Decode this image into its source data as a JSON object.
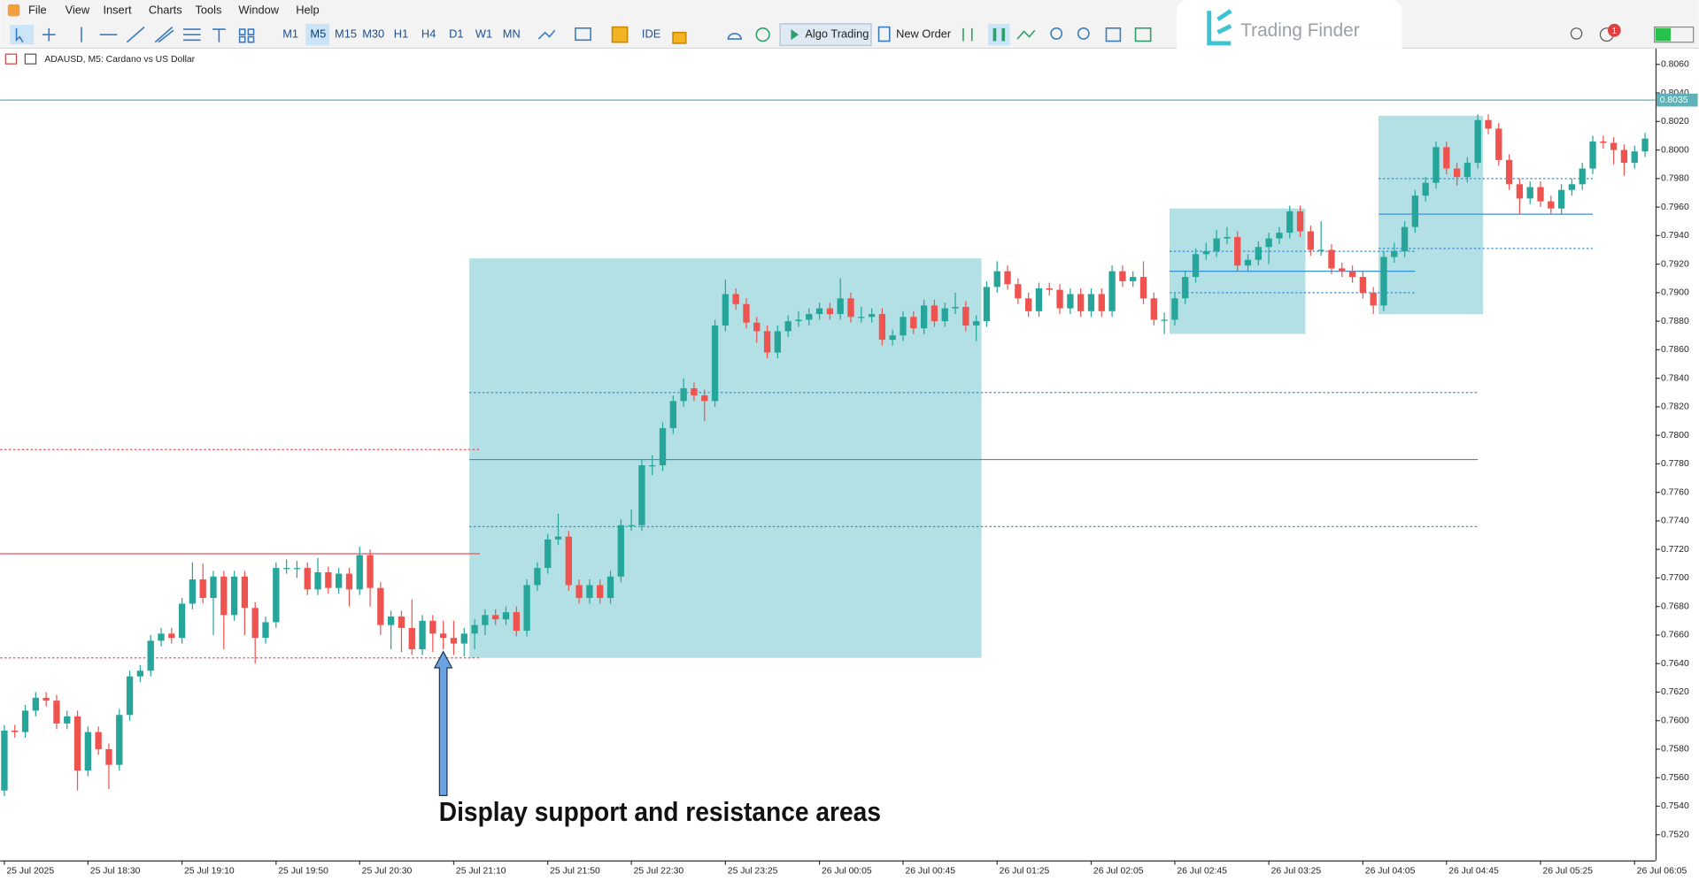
{
  "ui": {
    "menu": [
      "File",
      "View",
      "Insert",
      "Charts",
      "Tools",
      "Window",
      "Help"
    ],
    "timeframes": [
      "M1",
      "M5",
      "M15",
      "M30",
      "H1",
      "H4",
      "D1",
      "W1",
      "MN"
    ],
    "selected_timeframe": 1,
    "buttons": [
      "IDE",
      "Algo Trading",
      "New Order"
    ],
    "logo": "Trading Finder",
    "notification_count": "1"
  },
  "chart_data": {
    "type": "candlestick",
    "symbol_title": "ADAUSD, M5:  Cardano vs US Dollar",
    "annotation": "Display support and resistance areas",
    "bull_color": "#26a69a",
    "bear_color": "#ef5350",
    "zone_color": "#b2e0e4",
    "xlim": [
      -0.4,
      158
    ],
    "ylim": [
      0.7502,
      0.8071
    ],
    "xticks": [
      {
        "value": 0,
        "label": "25 Jul 2025"
      },
      {
        "value": 8,
        "label": "25 Jul 18:30"
      },
      {
        "value": 17,
        "label": "25 Jul 19:10"
      },
      {
        "value": 26,
        "label": "25 Jul 19:50"
      },
      {
        "value": 34,
        "label": "25 Jul 20:30"
      },
      {
        "value": 43,
        "label": "25 Jul 21:10"
      },
      {
        "value": 52,
        "label": "25 Jul 21:50"
      },
      {
        "value": 60,
        "label": "25 Jul 22:30"
      },
      {
        "value": 69,
        "label": "25 Jul 23:25"
      },
      {
        "value": 78,
        "label": "26 Jul 00:05"
      },
      {
        "value": 86,
        "label": "26 Jul 00:45"
      },
      {
        "value": 95,
        "label": "26 Jul 01:25"
      },
      {
        "value": 104,
        "label": "26 Jul 02:05"
      },
      {
        "value": 112,
        "label": "26 Jul 02:45"
      },
      {
        "value": 121,
        "label": "26 Jul 03:25"
      },
      {
        "value": 130,
        "label": "26 Jul 04:05"
      },
      {
        "value": 138,
        "label": "26 Jul 04:45"
      },
      {
        "value": 147,
        "label": "26 Jul 05:25"
      },
      {
        "value": 156,
        "label": "26 Jul 06:05"
      }
    ],
    "yticks": [
      {
        "value": 0.752,
        "label": "0.7520"
      },
      {
        "value": 0.754,
        "label": "0.7540"
      },
      {
        "value": 0.756,
        "label": "0.7560"
      },
      {
        "value": 0.758,
        "label": "0.7580"
      },
      {
        "value": 0.76,
        "label": "0.7600"
      },
      {
        "value": 0.762,
        "label": "0.7620"
      },
      {
        "value": 0.764,
        "label": "0.7640"
      },
      {
        "value": 0.766,
        "label": "0.7660"
      },
      {
        "value": 0.768,
        "label": "0.7680"
      },
      {
        "value": 0.77,
        "label": "0.7700"
      },
      {
        "value": 0.772,
        "label": "0.7720"
      },
      {
        "value": 0.774,
        "label": "0.7740"
      },
      {
        "value": 0.776,
        "label": "0.7760"
      },
      {
        "value": 0.778,
        "label": "0.7780"
      },
      {
        "value": 0.78,
        "label": "0.7800"
      },
      {
        "value": 0.782,
        "label": "0.7820"
      },
      {
        "value": 0.784,
        "label": "0.7840"
      },
      {
        "value": 0.786,
        "label": "0.7860"
      },
      {
        "value": 0.788,
        "label": "0.7880"
      },
      {
        "value": 0.79,
        "label": "0.7900"
      },
      {
        "value": 0.792,
        "label": "0.7920"
      },
      {
        "value": 0.794,
        "label": "0.7940"
      },
      {
        "value": 0.796,
        "label": "0.7960"
      },
      {
        "value": 0.798,
        "label": "0.7980"
      },
      {
        "value": 0.8,
        "label": "0.8000"
      },
      {
        "value": 0.802,
        "label": "0.8020"
      },
      {
        "value": 0.804,
        "label": "0.8040"
      },
      {
        "value": 0.806,
        "label": "0.8060"
      }
    ],
    "current_price": 0.8035,
    "current_price_color": "#5fb0b7",
    "zones": [
      {
        "x": [
          44.5,
          93.5
        ],
        "y": [
          0.7644,
          0.7924
        ]
      },
      {
        "x": [
          111.5,
          124.5
        ],
        "y": [
          0.7871,
          0.7959
        ]
      },
      {
        "x": [
          131.5,
          141.5
        ],
        "y": [
          0.7885,
          0.8024
        ]
      }
    ],
    "levels": [
      {
        "value": 0.779,
        "x": [
          -0.4,
          45.5
        ],
        "style": "dotted",
        "color": "#e8535a"
      },
      {
        "value": 0.7717,
        "x": [
          -0.4,
          45.5
        ],
        "style": "solid",
        "color": "#e8535a"
      },
      {
        "value": 0.7644,
        "x": [
          -0.4,
          45.5
        ],
        "style": "dotted",
        "color": "#e8535a"
      },
      {
        "value": 0.783,
        "x": [
          44.5,
          141
        ],
        "style": "dotted",
        "color": "#3a8fd6"
      },
      {
        "value": 0.7783,
        "x": [
          44.5,
          141
        ],
        "style": "solid",
        "color": "#3a8fd6"
      },
      {
        "value": 0.7736,
        "x": [
          44.5,
          141
        ],
        "style": "dotted",
        "color": "#3a8fd6"
      },
      {
        "value": 0.7929,
        "x": [
          111.5,
          135
        ],
        "style": "dotted",
        "color": "#3a8fd6"
      },
      {
        "value": 0.7915,
        "x": [
          111.5,
          135
        ],
        "style": "solid",
        "color": "#3a8fd6"
      },
      {
        "value": 0.79,
        "x": [
          111.5,
          135
        ],
        "style": "dotted",
        "color": "#3a8fd6"
      },
      {
        "value": 0.798,
        "x": [
          131.5,
          152
        ],
        "style": "dotted",
        "color": "#3a8fd6"
      },
      {
        "value": 0.7955,
        "x": [
          131.5,
          152
        ],
        "style": "solid",
        "color": "#3a8fd6"
      },
      {
        "value": 0.7931,
        "x": [
          131.5,
          152
        ],
        "style": "dotted",
        "color": "#3a8fd6"
      }
    ],
    "ohlc": [
      [
        0.7551,
        0.7597,
        0.7547,
        0.7593
      ],
      [
        0.7593,
        0.7597,
        0.7588,
        0.7592
      ],
      [
        0.7592,
        0.7611,
        0.7588,
        0.7607
      ],
      [
        0.7607,
        0.762,
        0.7603,
        0.7616
      ],
      [
        0.7616,
        0.762,
        0.761,
        0.7614
      ],
      [
        0.7614,
        0.7618,
        0.7594,
        0.7598
      ],
      [
        0.7598,
        0.7607,
        0.7594,
        0.7603
      ],
      [
        0.7603,
        0.7607,
        0.7551,
        0.7565
      ],
      [
        0.7565,
        0.7596,
        0.7561,
        0.7592
      ],
      [
        0.7592,
        0.7596,
        0.7576,
        0.758
      ],
      [
        0.758,
        0.7584,
        0.7552,
        0.7569
      ],
      [
        0.7569,
        0.7608,
        0.7565,
        0.7604
      ],
      [
        0.7604,
        0.7635,
        0.76,
        0.7631
      ],
      [
        0.7631,
        0.7639,
        0.7627,
        0.7635
      ],
      [
        0.7635,
        0.766,
        0.7631,
        0.7656
      ],
      [
        0.7656,
        0.7665,
        0.7652,
        0.7661
      ],
      [
        0.7661,
        0.7665,
        0.7654,
        0.7658
      ],
      [
        0.7658,
        0.7686,
        0.7654,
        0.7682
      ],
      [
        0.7682,
        0.7711,
        0.7678,
        0.7699
      ],
      [
        0.7699,
        0.771,
        0.7682,
        0.7686
      ],
      [
        0.7686,
        0.7705,
        0.766,
        0.7701
      ],
      [
        0.7701,
        0.7705,
        0.765,
        0.7674
      ],
      [
        0.7674,
        0.7705,
        0.767,
        0.7701
      ],
      [
        0.7701,
        0.7705,
        0.766,
        0.7679
      ],
      [
        0.7679,
        0.7683,
        0.764,
        0.7658
      ],
      [
        0.7658,
        0.7673,
        0.7654,
        0.7669
      ],
      [
        0.7669,
        0.7711,
        0.7665,
        0.7707
      ],
      [
        0.7707,
        0.7713,
        0.7703,
        0.7707
      ],
      [
        0.7707,
        0.7712,
        0.77,
        0.7707
      ],
      [
        0.7707,
        0.7711,
        0.7688,
        0.7692
      ],
      [
        0.7692,
        0.7714,
        0.7688,
        0.7704
      ],
      [
        0.7704,
        0.7708,
        0.7689,
        0.7693
      ],
      [
        0.7693,
        0.7707,
        0.7689,
        0.7703
      ],
      [
        0.7703,
        0.7707,
        0.768,
        0.7692
      ],
      [
        0.7692,
        0.7722,
        0.7688,
        0.7716
      ],
      [
        0.7716,
        0.772,
        0.768,
        0.7693
      ],
      [
        0.7693,
        0.7697,
        0.766,
        0.7667
      ],
      [
        0.7667,
        0.7677,
        0.765,
        0.7673
      ],
      [
        0.7673,
        0.7677,
        0.7648,
        0.7665
      ],
      [
        0.7665,
        0.7685,
        0.7646,
        0.765
      ],
      [
        0.765,
        0.7674,
        0.7646,
        0.767
      ],
      [
        0.767,
        0.7674,
        0.7648,
        0.7661
      ],
      [
        0.7661,
        0.767,
        0.765,
        0.7658
      ],
      [
        0.7658,
        0.767,
        0.7646,
        0.7654
      ],
      [
        0.7654,
        0.7665,
        0.7645,
        0.7661
      ],
      [
        0.7661,
        0.7671,
        0.765,
        0.7667
      ],
      [
        0.7667,
        0.7678,
        0.766,
        0.7674
      ],
      [
        0.7674,
        0.7678,
        0.7667,
        0.7671
      ],
      [
        0.7671,
        0.768,
        0.7667,
        0.7676
      ],
      [
        0.7676,
        0.768,
        0.7659,
        0.7663
      ],
      [
        0.7663,
        0.7699,
        0.7659,
        0.7695
      ],
      [
        0.7695,
        0.7711,
        0.7691,
        0.7707
      ],
      [
        0.7707,
        0.7731,
        0.7703,
        0.7727
      ],
      [
        0.7727,
        0.7745,
        0.7723,
        0.7729
      ],
      [
        0.7729,
        0.7733,
        0.7691,
        0.7695
      ],
      [
        0.7695,
        0.7699,
        0.7682,
        0.7686
      ],
      [
        0.7686,
        0.7699,
        0.7682,
        0.7695
      ],
      [
        0.7695,
        0.7699,
        0.7682,
        0.7686
      ],
      [
        0.7686,
        0.7705,
        0.7682,
        0.7701
      ],
      [
        0.7701,
        0.7741,
        0.7697,
        0.7737
      ],
      [
        0.7737,
        0.7748,
        0.7733,
        0.7737
      ],
      [
        0.7737,
        0.7783,
        0.7733,
        0.7779
      ],
      [
        0.7779,
        0.7786,
        0.7772,
        0.7779
      ],
      [
        0.7779,
        0.7809,
        0.7775,
        0.7805
      ],
      [
        0.7805,
        0.7828,
        0.7801,
        0.7824
      ],
      [
        0.7824,
        0.784,
        0.782,
        0.7833
      ],
      [
        0.7833,
        0.7837,
        0.7824,
        0.7828
      ],
      [
        0.7828,
        0.7832,
        0.781,
        0.7824
      ],
      [
        0.7824,
        0.7881,
        0.782,
        0.7877
      ],
      [
        0.7877,
        0.7909,
        0.7873,
        0.7899
      ],
      [
        0.7899,
        0.7903,
        0.7888,
        0.7892
      ],
      [
        0.7892,
        0.7896,
        0.7875,
        0.7879
      ],
      [
        0.7879,
        0.7883,
        0.7865,
        0.7873
      ],
      [
        0.7873,
        0.7877,
        0.7854,
        0.7858
      ],
      [
        0.7858,
        0.7877,
        0.7854,
        0.7873
      ],
      [
        0.7873,
        0.7884,
        0.7869,
        0.788
      ],
      [
        0.788,
        0.7887,
        0.7876,
        0.7881
      ],
      [
        0.7881,
        0.7889,
        0.7877,
        0.7885
      ],
      [
        0.7885,
        0.7893,
        0.7881,
        0.7889
      ],
      [
        0.7889,
        0.7893,
        0.7881,
        0.7885
      ],
      [
        0.7885,
        0.791,
        0.7881,
        0.7896
      ],
      [
        0.7896,
        0.79,
        0.7879,
        0.7883
      ],
      [
        0.7883,
        0.789,
        0.7879,
        0.7883
      ],
      [
        0.7883,
        0.7889,
        0.7879,
        0.7885
      ],
      [
        0.7885,
        0.7889,
        0.7863,
        0.7867
      ],
      [
        0.7867,
        0.7874,
        0.7863,
        0.787
      ],
      [
        0.787,
        0.7887,
        0.7866,
        0.7883
      ],
      [
        0.7883,
        0.7887,
        0.7871,
        0.7875
      ],
      [
        0.7875,
        0.7895,
        0.7871,
        0.7891
      ],
      [
        0.7891,
        0.7895,
        0.7876,
        0.788
      ],
      [
        0.788,
        0.7893,
        0.7876,
        0.7889
      ],
      [
        0.7889,
        0.79,
        0.7885,
        0.789
      ],
      [
        0.789,
        0.7894,
        0.7873,
        0.7877
      ],
      [
        0.7877,
        0.7884,
        0.7866,
        0.788
      ],
      [
        0.788,
        0.7908,
        0.7876,
        0.7904
      ],
      [
        0.7904,
        0.7922,
        0.79,
        0.7915
      ],
      [
        0.7915,
        0.7919,
        0.7902,
        0.7906
      ],
      [
        0.7906,
        0.791,
        0.7892,
        0.7896
      ],
      [
        0.7896,
        0.79,
        0.7883,
        0.7887
      ],
      [
        0.7887,
        0.7907,
        0.7883,
        0.7903
      ],
      [
        0.7903,
        0.7907,
        0.7898,
        0.7902
      ],
      [
        0.7902,
        0.7906,
        0.7885,
        0.7889
      ],
      [
        0.7889,
        0.7903,
        0.7885,
        0.7899
      ],
      [
        0.7899,
        0.7903,
        0.7883,
        0.7887
      ],
      [
        0.7887,
        0.7903,
        0.7883,
        0.7899
      ],
      [
        0.7899,
        0.7903,
        0.7883,
        0.7887
      ],
      [
        0.7887,
        0.7919,
        0.7883,
        0.7915
      ],
      [
        0.7915,
        0.7919,
        0.7904,
        0.7908
      ],
      [
        0.7908,
        0.7915,
        0.7904,
        0.7911
      ],
      [
        0.7911,
        0.7922,
        0.7892,
        0.7896
      ],
      [
        0.7896,
        0.79,
        0.7877,
        0.7881
      ],
      [
        0.7881,
        0.7886,
        0.7871,
        0.7881
      ],
      [
        0.7881,
        0.79,
        0.7877,
        0.7896
      ],
      [
        0.7896,
        0.7915,
        0.7892,
        0.7911
      ],
      [
        0.7911,
        0.7931,
        0.7907,
        0.7927
      ],
      [
        0.7927,
        0.7935,
        0.7923,
        0.7929
      ],
      [
        0.7929,
        0.7944,
        0.7925,
        0.7938
      ],
      [
        0.7938,
        0.7946,
        0.7934,
        0.7939
      ],
      [
        0.7939,
        0.7943,
        0.7915,
        0.7919
      ],
      [
        0.7919,
        0.7927,
        0.7915,
        0.7923
      ],
      [
        0.7923,
        0.7936,
        0.7919,
        0.7932
      ],
      [
        0.7932,
        0.7942,
        0.792,
        0.7938
      ],
      [
        0.7938,
        0.7946,
        0.7934,
        0.7942
      ],
      [
        0.7942,
        0.7961,
        0.7938,
        0.7957
      ],
      [
        0.7957,
        0.7961,
        0.7939,
        0.7943
      ],
      [
        0.7943,
        0.7947,
        0.7926,
        0.793
      ],
      [
        0.793,
        0.795,
        0.7926,
        0.793
      ],
      [
        0.793,
        0.7934,
        0.7913,
        0.7917
      ],
      [
        0.7917,
        0.7921,
        0.7911,
        0.7915
      ],
      [
        0.7915,
        0.7919,
        0.7907,
        0.7911
      ],
      [
        0.7911,
        0.7915,
        0.7896,
        0.79
      ],
      [
        0.79,
        0.7904,
        0.7885,
        0.7891
      ],
      [
        0.7891,
        0.7929,
        0.7887,
        0.7925
      ],
      [
        0.7925,
        0.7935,
        0.7921,
        0.7929
      ],
      [
        0.7929,
        0.795,
        0.7925,
        0.7946
      ],
      [
        0.7946,
        0.7972,
        0.7942,
        0.7968
      ],
      [
        0.7968,
        0.7981,
        0.7964,
        0.7977
      ],
      [
        0.7977,
        0.8006,
        0.7973,
        0.8002
      ],
      [
        0.8002,
        0.8006,
        0.7983,
        0.7987
      ],
      [
        0.7987,
        0.7991,
        0.7975,
        0.7981
      ],
      [
        0.7981,
        0.7995,
        0.7977,
        0.7991
      ],
      [
        0.7991,
        0.8025,
        0.7987,
        0.8021
      ],
      [
        0.8021,
        0.8025,
        0.8011,
        0.8015
      ],
      [
        0.8015,
        0.8019,
        0.7989,
        0.7993
      ],
      [
        0.7993,
        0.7997,
        0.7972,
        0.7976
      ],
      [
        0.7976,
        0.798,
        0.7955,
        0.7966
      ],
      [
        0.7966,
        0.7978,
        0.7962,
        0.7974
      ],
      [
        0.7974,
        0.7978,
        0.796,
        0.7964
      ],
      [
        0.7964,
        0.7968,
        0.7955,
        0.7959
      ],
      [
        0.7959,
        0.7976,
        0.7955,
        0.7972
      ],
      [
        0.7972,
        0.798,
        0.7968,
        0.7976
      ],
      [
        0.7976,
        0.7991,
        0.7972,
        0.7987
      ],
      [
        0.7987,
        0.801,
        0.7983,
        0.8006
      ],
      [
        0.8006,
        0.801,
        0.8001,
        0.8005
      ],
      [
        0.8005,
        0.8009,
        0.799,
        0.8
      ],
      [
        0.8,
        0.8004,
        0.7982,
        0.7991
      ],
      [
        0.7991,
        0.8003,
        0.7987,
        0.7999
      ],
      [
        0.7999,
        0.8012,
        0.7995,
        0.8008
      ]
    ]
  }
}
